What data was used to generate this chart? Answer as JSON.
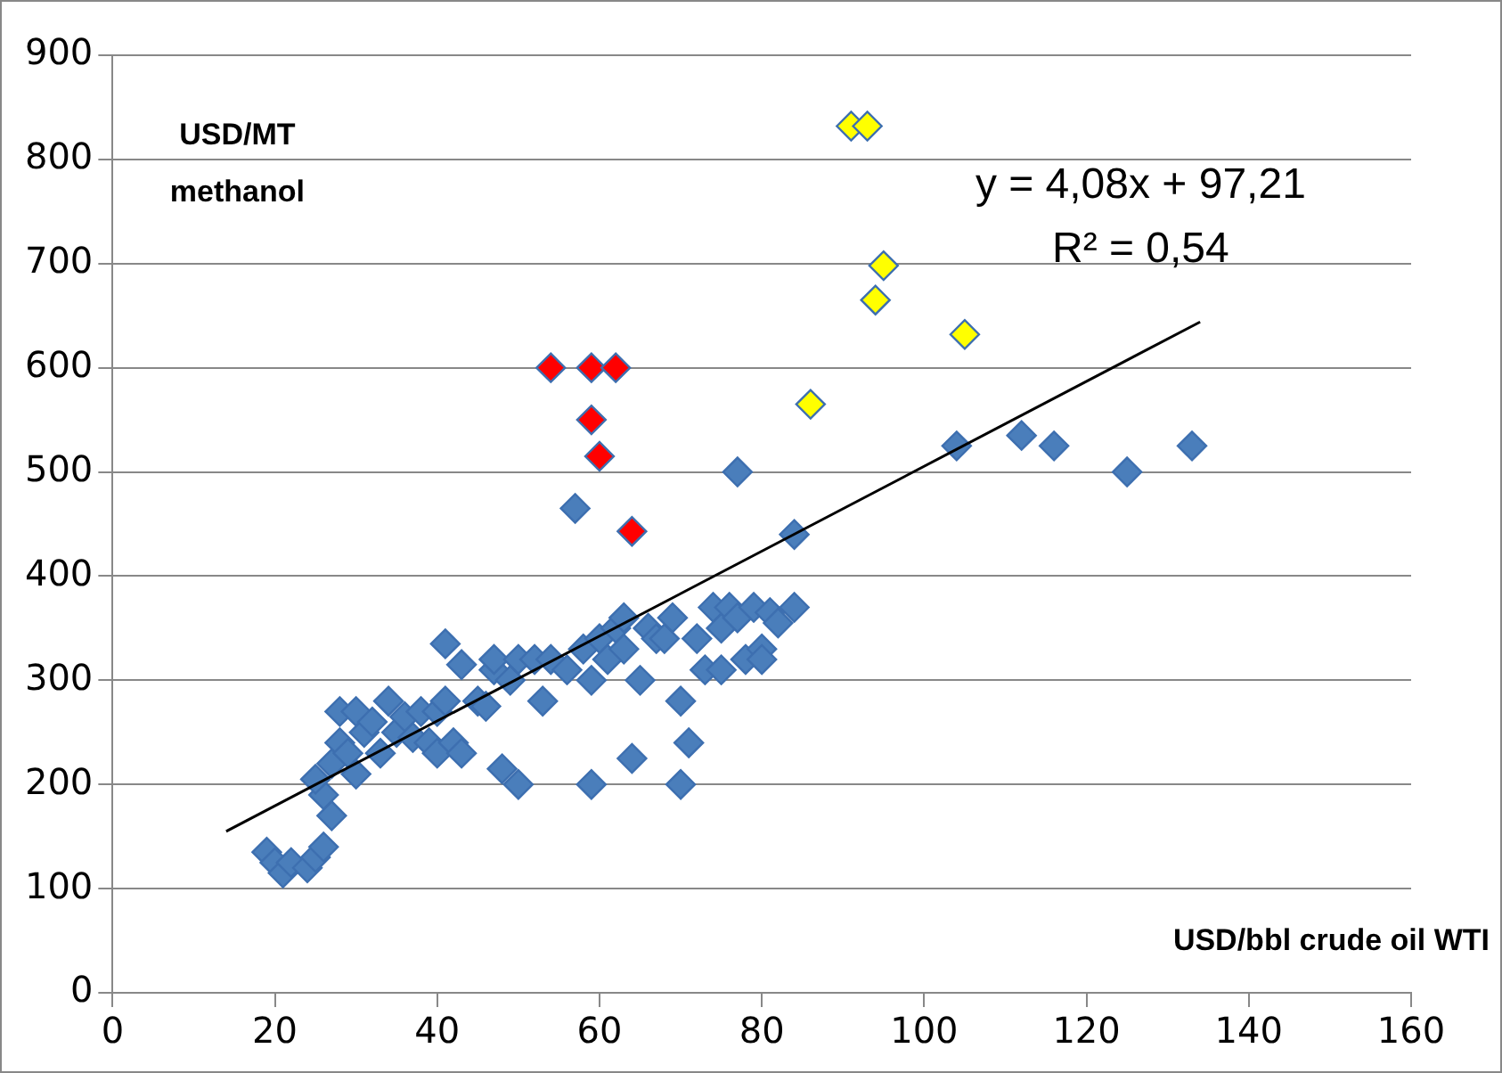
{
  "chart_data": {
    "type": "scatter",
    "xlabel": "USD/bbl crude oil WTI",
    "ylabel": "USD/MT\nmethanol",
    "annotations": [
      "y = 4,08x + 97,21",
      "R² = 0,54"
    ],
    "xlim": [
      0,
      160
    ],
    "xticks": [
      0,
      20,
      40,
      60,
      80,
      100,
      120,
      140,
      160
    ],
    "ylim": [
      0,
      900
    ],
    "yticks": [
      0,
      100,
      200,
      300,
      400,
      500,
      600,
      700,
      800,
      900
    ],
    "grid": "y",
    "legend": false,
    "marker": "diamond",
    "series": [
      {
        "color": "#4a7ebb",
        "x": [
          19,
          20,
          21,
          22,
          24,
          25,
          26,
          27,
          26,
          25,
          27,
          28,
          28,
          29,
          30,
          30,
          31,
          32,
          33,
          34,
          35,
          36,
          37,
          38,
          39,
          40,
          40,
          41,
          41,
          42,
          43,
          43,
          45,
          46,
          47,
          47,
          48,
          49,
          50,
          50,
          52,
          53,
          54,
          56,
          57,
          58,
          59,
          59,
          60,
          61,
          62,
          63,
          63,
          64,
          65,
          66,
          67,
          68,
          69,
          70,
          70,
          71,
          72,
          73,
          74,
          75,
          75,
          76,
          77,
          77,
          78,
          79,
          80,
          80,
          81,
          82,
          84,
          84,
          104,
          112,
          116,
          125,
          133
        ],
        "values": [
          135,
          125,
          115,
          125,
          120,
          130,
          140,
          170,
          190,
          205,
          220,
          270,
          240,
          230,
          210,
          270,
          250,
          260,
          230,
          280,
          250,
          265,
          245,
          270,
          240,
          230,
          270,
          280,
          335,
          240,
          230,
          315,
          280,
          275,
          310,
          320,
          215,
          300,
          200,
          320,
          320,
          280,
          320,
          310,
          465,
          330,
          200,
          300,
          340,
          320,
          350,
          360,
          330,
          225,
          300,
          350,
          340,
          340,
          360,
          280,
          200,
          240,
          340,
          310,
          370,
          350,
          310,
          370,
          500,
          360,
          320,
          370,
          330,
          320,
          365,
          355,
          370,
          440,
          525,
          535,
          525,
          500,
          525
        ]
      },
      {
        "color": "#ff0000",
        "x": [
          54,
          59,
          62,
          59,
          60,
          64
        ],
        "values": [
          600,
          600,
          600,
          550,
          515,
          443
        ]
      },
      {
        "color": "#ffff00",
        "x": [
          91,
          93,
          95,
          94,
          105,
          86
        ],
        "values": [
          832,
          832,
          698,
          665,
          632,
          565
        ]
      },
      {
        "type": "line",
        "color": "#000000",
        "marker": "none",
        "line_style": "solid",
        "x": [
          14,
          134
        ],
        "values": [
          155,
          644
        ]
      }
    ]
  }
}
